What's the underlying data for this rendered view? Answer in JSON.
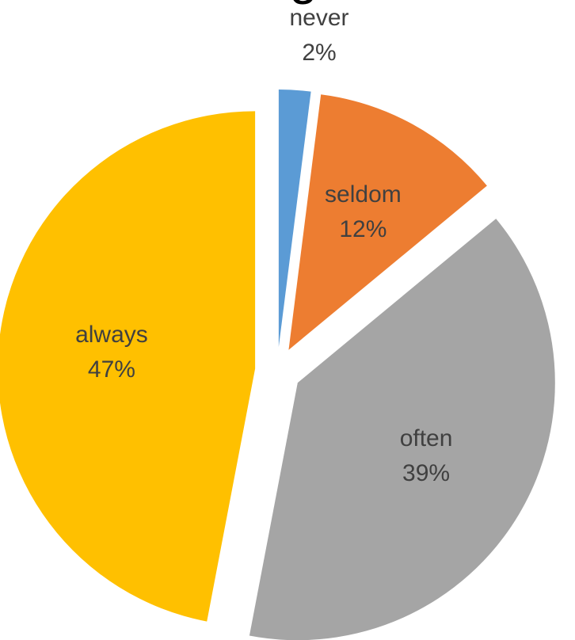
{
  "chart_data": {
    "type": "pie",
    "title_fragment": "g",
    "slices": [
      {
        "label": "never",
        "value": 2,
        "value_label": "2%",
        "color": "#5b9bd5"
      },
      {
        "label": "seldom",
        "value": 12,
        "value_label": "12%",
        "color": "#ed7d31"
      },
      {
        "label": "often",
        "value": 39,
        "value_label": "39%",
        "color": "#a5a5a5"
      },
      {
        "label": "always",
        "value": 47,
        "value_label": "47%",
        "color": "#ffc000"
      }
    ],
    "legend": "none",
    "label_color": "#404040"
  }
}
